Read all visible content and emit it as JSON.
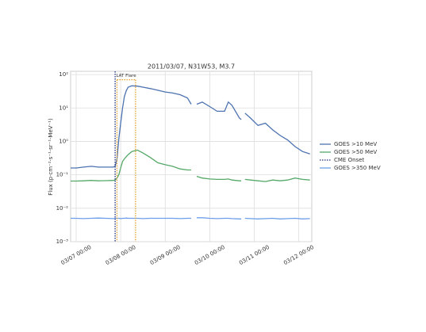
{
  "chart_data": {
    "type": "line",
    "title": "2011/03/07, N31W53, M3.7",
    "y_label": "Flux (p·cm⁻²·s⁻¹·sr⁻¹·MeV⁻¹)",
    "log_y": true,
    "grid": true,
    "xlim": [
      "2011-03-06T21:00",
      "2011-03-12T07:00"
    ],
    "xticks": [
      {
        "value": "2011-03-07T00:00",
        "label": "03/07 00:00"
      },
      {
        "value": "2011-03-08T00:00",
        "label": "03/08 00:00"
      },
      {
        "value": "2011-03-09T00:00",
        "label": "03/09 00:00"
      },
      {
        "value": "2011-03-10T00:00",
        "label": "03/10 00:00"
      },
      {
        "value": "2011-03-11T00:00",
        "label": "03/11 00:00"
      },
      {
        "value": "2011-03-12T00:00",
        "label": "03/12 00:00"
      }
    ],
    "ylim": [
      0.001,
      125
    ],
    "yticks": [
      {
        "value": 100,
        "label": "10²"
      },
      {
        "value": 10,
        "label": "10¹"
      },
      {
        "value": 1,
        "label": "10⁰"
      },
      {
        "value": 0.1,
        "label": "10⁻¹"
      },
      {
        "value": 0.01,
        "label": "10⁻²"
      },
      {
        "value": 0.001,
        "label": "10⁻³"
      }
    ],
    "x": [
      "2011-03-06T21:00",
      "2011-03-07T00:00",
      "2011-03-07T04:00",
      "2011-03-07T08:00",
      "2011-03-07T12:00",
      "2011-03-07T16:00",
      "2011-03-07T20:00",
      "2011-03-07T21:00",
      "2011-03-07T22:00",
      "2011-03-07T23:00",
      "2011-03-08T00:00",
      "2011-03-08T01:00",
      "2011-03-08T02:00",
      "2011-03-08T03:00",
      "2011-03-08T04:00",
      "2011-03-08T06:00",
      "2011-03-08T09:00",
      "2011-03-08T12:00",
      "2011-03-08T16:00",
      "2011-03-08T20:00",
      "2011-03-09T00:00",
      "2011-03-09T04:00",
      "2011-03-09T08:00",
      "2011-03-09T12:00",
      "2011-03-09T14:00",
      "2011-03-09T15:00",
      "2011-03-09T17:00",
      "2011-03-09T20:00",
      "2011-03-10T00:00",
      "2011-03-10T04:00",
      "2011-03-10T08:00",
      "2011-03-10T10:00",
      "2011-03-10T12:00",
      "2011-03-10T16:00",
      "2011-03-10T17:00",
      "2011-03-10T18:00",
      "2011-03-10T19:00",
      "2011-03-10T22:00",
      "2011-03-11T02:00",
      "2011-03-11T06:00",
      "2011-03-11T10:00",
      "2011-03-11T14:00",
      "2011-03-11T18:00",
      "2011-03-11T22:00",
      "2011-03-12T02:00",
      "2011-03-12T06:00"
    ],
    "series": [
      {
        "name": "GOES >10 MeV",
        "color": "#4c72b0",
        "values": [
          0.16,
          0.16,
          0.17,
          0.18,
          0.17,
          0.17,
          0.17,
          0.18,
          0.3,
          1.2,
          3.5,
          10,
          22,
          33,
          42,
          46,
          45,
          42,
          38,
          34,
          30,
          28,
          25,
          20,
          13,
          null,
          13,
          15,
          11,
          8,
          8,
          15,
          12,
          5,
          4.5,
          null,
          7,
          5,
          3,
          3.5,
          2.2,
          1.5,
          1.1,
          0.7,
          0.5,
          0.42
        ]
      },
      {
        "name": "GOES >50 MeV",
        "color": "#55a868",
        "values": [
          0.065,
          0.065,
          0.066,
          0.068,
          0.066,
          0.067,
          0.068,
          0.07,
          0.08,
          0.1,
          0.16,
          0.25,
          0.3,
          0.35,
          0.4,
          0.5,
          0.55,
          0.45,
          0.33,
          0.23,
          0.2,
          0.18,
          0.15,
          0.14,
          0.14,
          null,
          0.09,
          0.08,
          0.075,
          0.073,
          0.073,
          0.075,
          0.07,
          0.066,
          0.066,
          null,
          0.073,
          0.07,
          0.066,
          0.063,
          0.07,
          0.066,
          0.07,
          0.08,
          0.073,
          0.07
        ]
      },
      {
        "name": "CME Onset",
        "color": "#1f2f7a",
        "linestyle": "dotted",
        "at": "2011-03-07T21:00"
      },
      {
        "name": "GOES >350 MeV",
        "color": "#6d9eeb",
        "values": [
          0.005,
          0.005,
          0.0049,
          0.005,
          0.0051,
          0.005,
          0.0049,
          0.005,
          0.005,
          0.005,
          0.0049,
          0.005,
          0.005,
          0.0051,
          0.005,
          0.005,
          0.005,
          0.0049,
          0.005,
          0.005,
          0.005,
          0.005,
          0.0049,
          0.005,
          0.005,
          null,
          0.0052,
          0.0052,
          0.005,
          0.0049,
          0.005,
          0.005,
          0.0049,
          0.0048,
          0.0048,
          null,
          0.005,
          0.0049,
          0.0048,
          0.0049,
          0.005,
          0.0048,
          0.0049,
          0.005,
          0.0048,
          0.0049
        ]
      }
    ],
    "annotations": [
      {
        "text": "LAT Flare",
        "start": "2011-03-07T22:00",
        "end": "2011-03-08T08:00",
        "level": 70,
        "color": "#e5a02a"
      }
    ]
  }
}
